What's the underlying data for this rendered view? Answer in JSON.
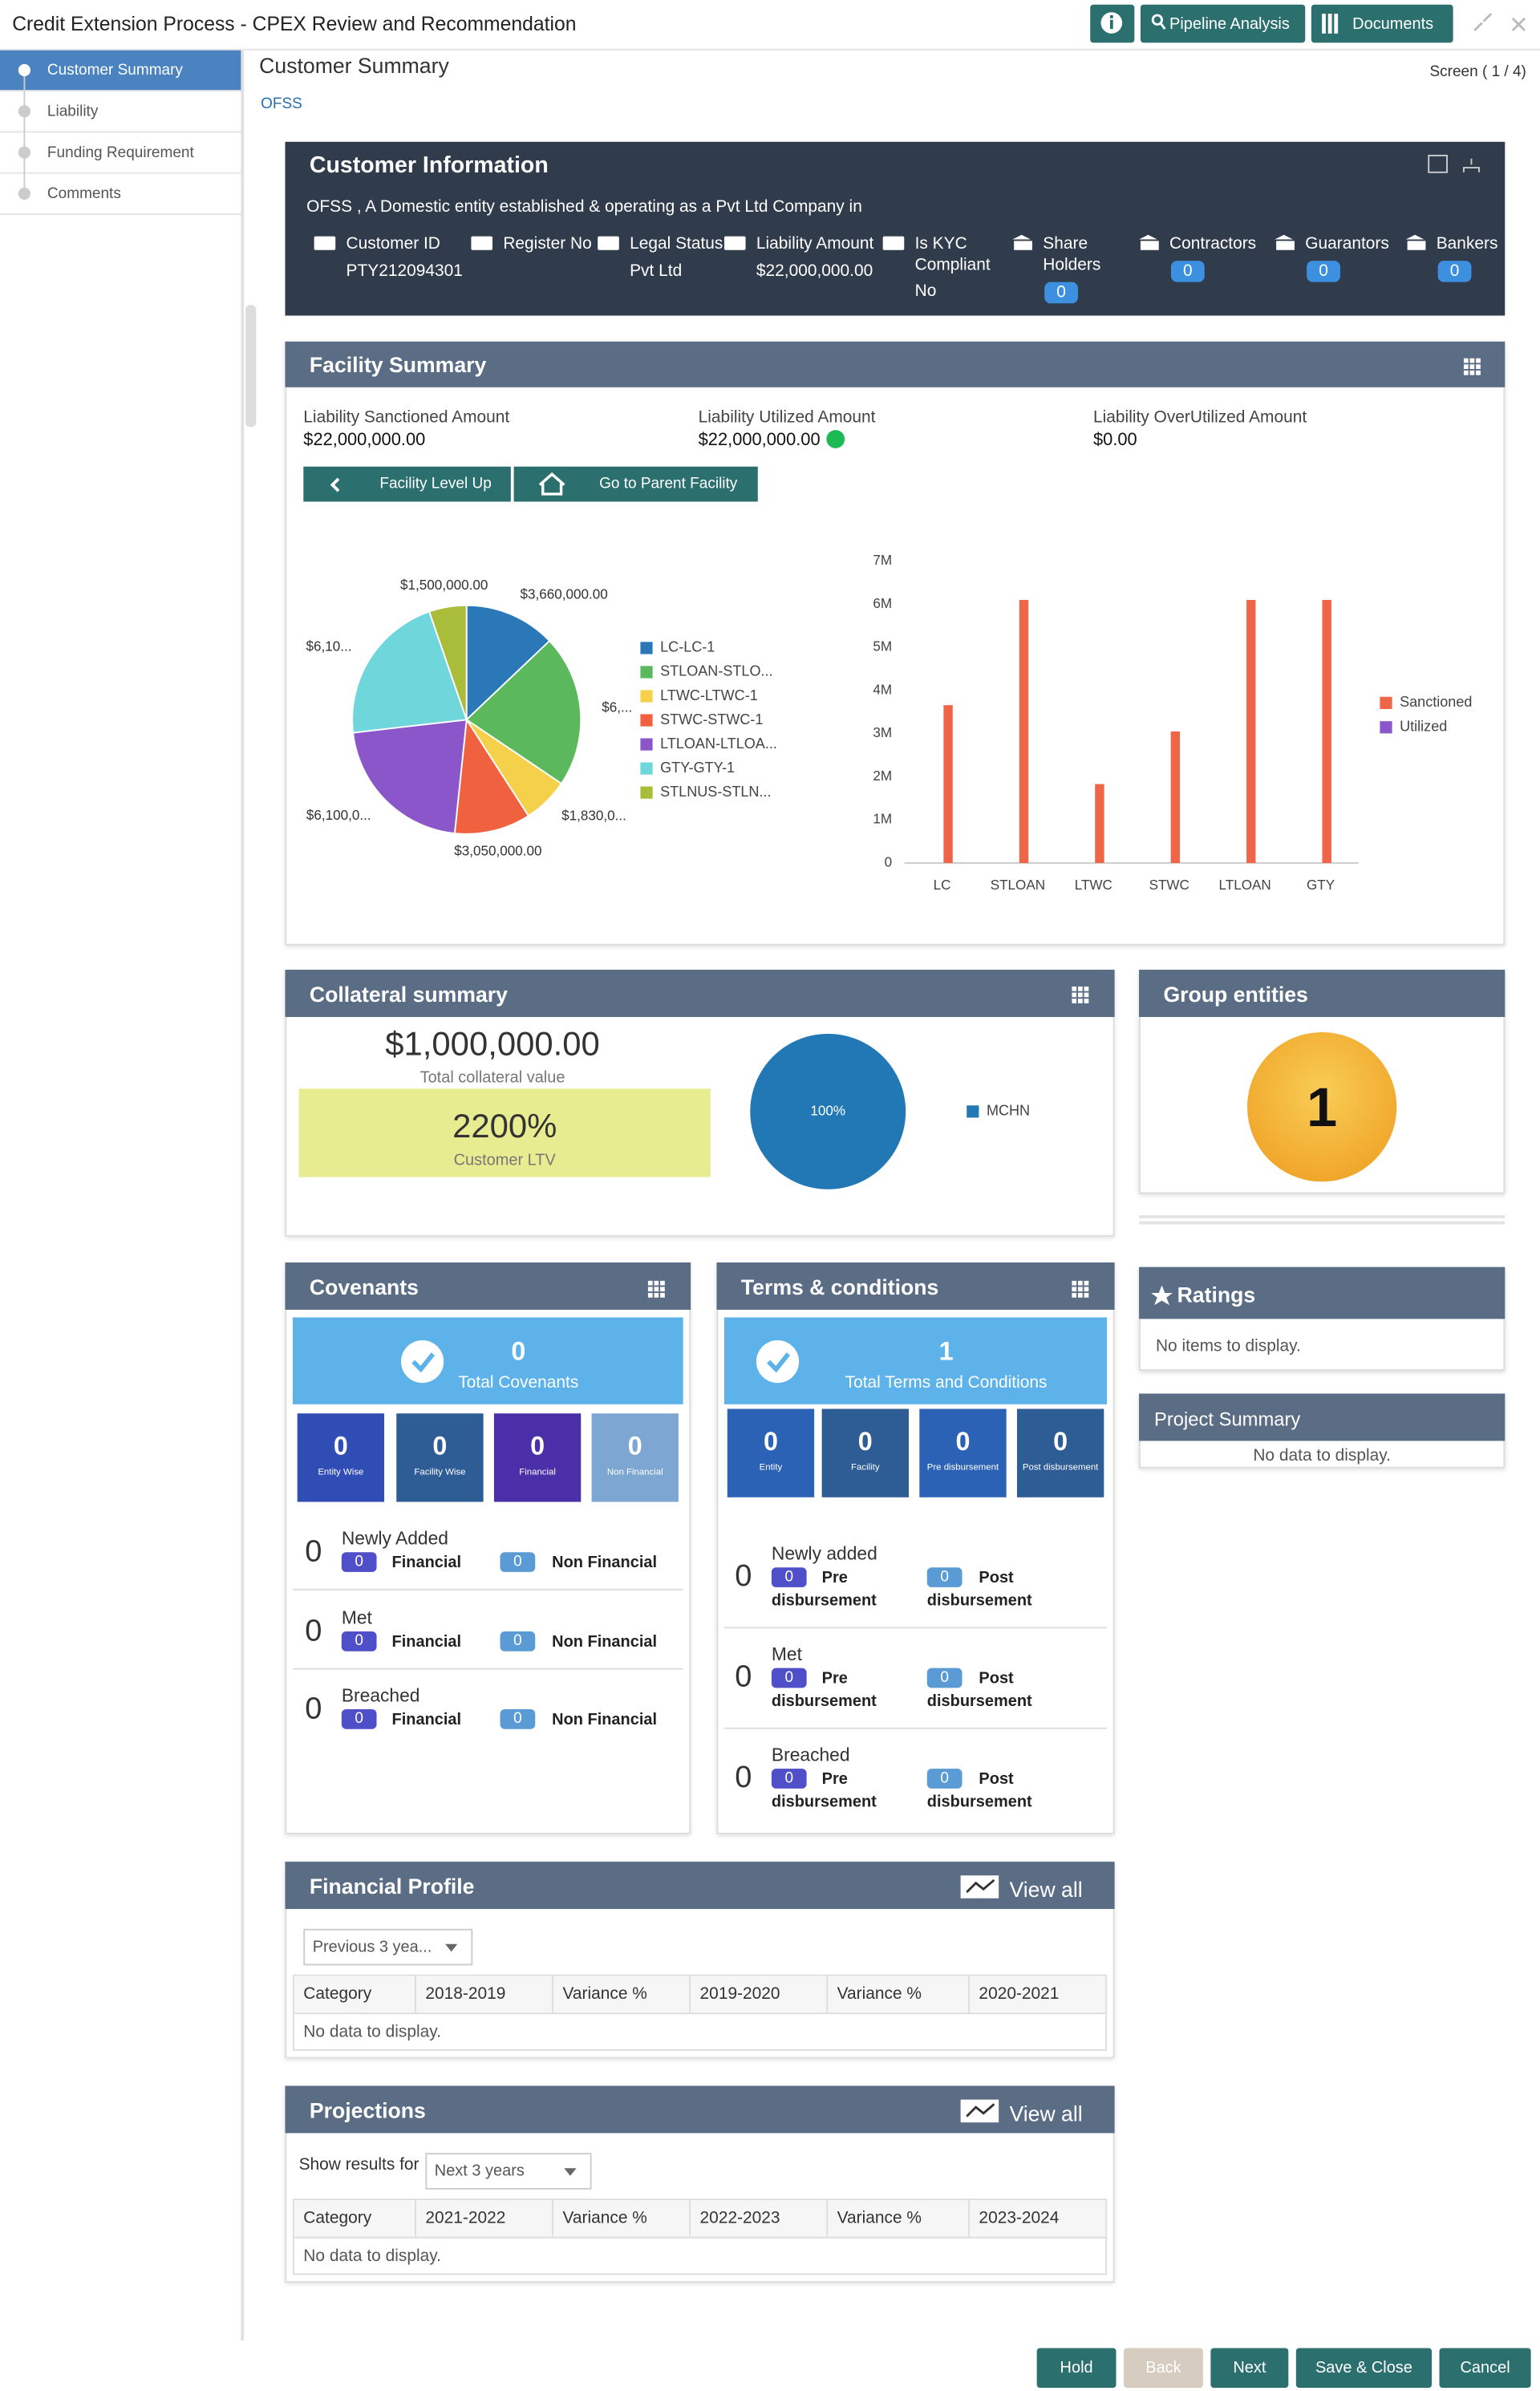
{
  "header": {
    "title": "Credit Extension Process - CPEX Review and Recommendation",
    "pipeline": "Pipeline Analysis",
    "documents": "Documents"
  },
  "sidebar": [
    "Customer Summary",
    "Liability",
    "Funding Requirement",
    "Comments"
  ],
  "page": {
    "title": "Customer Summary",
    "org": "OFSS",
    "screen": "Screen ( 1 / 4)"
  },
  "customer_info": {
    "title": "Customer Information",
    "description": "OFSS , A Domestic entity established & operating as a Pvt Ltd Company in",
    "fields": [
      {
        "label": "Customer ID",
        "value": "PTY212094301"
      },
      {
        "label": "Register No"
      },
      {
        "label": "Legal Status",
        "value": "Pvt Ltd"
      },
      {
        "label": "Liability Amount",
        "value": "$22,000,000.00"
      },
      {
        "label": "Is KYC Compliant",
        "value": "No"
      }
    ],
    "counts": [
      {
        "label": "Share Holders",
        "count": 0
      },
      {
        "label": "Contractors",
        "count": 0
      },
      {
        "label": "Guarantors",
        "count": 0
      },
      {
        "label": "Bankers",
        "count": 0
      }
    ]
  },
  "facility_summary": {
    "title": "Facility Summary",
    "amounts": [
      {
        "label": "Liability Sanctioned Amount",
        "value": "$22,000,000.00"
      },
      {
        "label": "Liability Utilized Amount",
        "value": "$22,000,000.00"
      },
      {
        "label": "Liability OverUtilized Amount",
        "value": "$0.00"
      }
    ],
    "level_up": "Facility Level Up",
    "parent": "Go to Parent Facility"
  },
  "chart_data": [
    {
      "type": "pie",
      "categories": [
        "LC-LC-1",
        "STLOAN-STLO...",
        "LTWC-LTWC-1",
        "STWC-STWC-1",
        "LTLOAN-LTLOA...",
        "GTY-GTY-1",
        "STLNUS-STLN..."
      ],
      "values": [
        3660000,
        6100000,
        1830000,
        3050000,
        6100000,
        6100000,
        1500000
      ],
      "value_labels": [
        "$3,660,000.00",
        "$6,...",
        "$1,830,0...",
        "$3,050,000.00",
        "$6,100,0...",
        "$6,10...",
        "$1,500,000.00"
      ],
      "colors": [
        "#2a78b8",
        "#5cb85c",
        "#f5d04a",
        "#f0623f",
        "#8a56c9",
        "#6fd6dc",
        "#a9bd3a"
      ]
    },
    {
      "type": "bar",
      "categories": [
        "LC",
        "STLOAN",
        "LTWC",
        "STWC",
        "LTLOAN",
        "GTY"
      ],
      "series": [
        {
          "name": "Sanctioned",
          "color": "#ef6548",
          "values": [
            3660000,
            6100000,
            1830000,
            3050000,
            6100000,
            6100000
          ]
        },
        {
          "name": "Utilized",
          "color": "#8a56c9",
          "values": [
            0,
            0,
            0,
            0,
            0,
            0
          ]
        }
      ],
      "ylim": [
        0,
        7000000
      ],
      "yticks": [
        0,
        {
          "value": 1000000,
          "label": "1M"
        },
        {
          "value": 2000000,
          "label": "2M"
        },
        {
          "value": 3000000,
          "label": "3M"
        },
        {
          "value": 4000000,
          "label": "4M"
        },
        {
          "value": 5000000,
          "label": "5M"
        },
        {
          "value": 6000000,
          "label": "6M"
        },
        {
          "value": 7000000,
          "label": "7M"
        }
      ]
    },
    {
      "type": "pie",
      "categories": [
        "MCHN"
      ],
      "values": [
        100
      ],
      "value_labels": [
        "100%"
      ],
      "colors": [
        "#2278b5"
      ]
    }
  ],
  "collateral": {
    "title": "Collateral summary",
    "total": "$1,000,000.00",
    "total_label": "Total collateral value",
    "ltv": "2200%",
    "ltv_label": "Customer LTV"
  },
  "group_entities": {
    "title": "Group entities",
    "count": 1
  },
  "covenants": {
    "title": "Covenants",
    "total": 0,
    "total_label": "Total Covenants",
    "tiles": [
      {
        "count": 0,
        "label": "Entity Wise"
      },
      {
        "count": 0,
        "label": "Facility Wise"
      },
      {
        "count": 0,
        "label": "Financial"
      },
      {
        "count": 0,
        "label": "Non Financial"
      }
    ],
    "rows": [
      {
        "label": "Newly Added",
        "count": 0,
        "a": 0,
        "a_label": "Financial",
        "b": 0,
        "b_label": "Non Financial"
      },
      {
        "label": "Met",
        "count": 0,
        "a": 0,
        "a_label": "Financial",
        "b": 0,
        "b_label": "Non Financial"
      },
      {
        "label": "Breached",
        "count": 0,
        "a": 0,
        "a_label": "Financial",
        "b": 0,
        "b_label": "Non Financial"
      }
    ]
  },
  "terms": {
    "title": "Terms & conditions",
    "total": 1,
    "total_label": "Total Terms and Conditions",
    "tiles": [
      {
        "count": 0,
        "label": "Entity"
      },
      {
        "count": 0,
        "label": "Facility"
      },
      {
        "count": 0,
        "label": "Pre disbursement"
      },
      {
        "count": 0,
        "label": "Post disbursement"
      }
    ],
    "rows": [
      {
        "label": "Newly added",
        "count": 0,
        "a": 0,
        "a_label": "Pre disbursement",
        "b": 0,
        "b_label": "Post disbursement"
      },
      {
        "label": "Met",
        "count": 0,
        "a": 0,
        "a_label": "Pre disbursement",
        "b": 0,
        "b_label": "Post disbursement"
      },
      {
        "label": "Breached",
        "count": 0,
        "a": 0,
        "a_label": "Pre disbursement",
        "b": 0,
        "b_label": "Post disbursement"
      }
    ]
  },
  "ratings": {
    "title": "Ratings",
    "empty": "No items to display."
  },
  "project_summary": {
    "title": "Project Summary",
    "empty": "No data to display."
  },
  "financial_profile": {
    "title": "Financial Profile",
    "view_all": "View all",
    "select": "Previous 3 yea...",
    "columns": [
      "Category",
      "2018-2019",
      "Variance %",
      "2019-2020",
      "Variance %",
      "2020-2021"
    ],
    "empty": "No data to display."
  },
  "projections": {
    "title": "Projections",
    "view_all": "View all",
    "filter_label": "Show results for",
    "select": "Next 3 years",
    "columns": [
      "Category",
      "2021-2022",
      "Variance %",
      "2022-2023",
      "Variance %",
      "2023-2024"
    ],
    "empty": "No data to display."
  },
  "footer": [
    "Hold",
    "Back",
    "Next",
    "Save & Close",
    "Cancel"
  ]
}
